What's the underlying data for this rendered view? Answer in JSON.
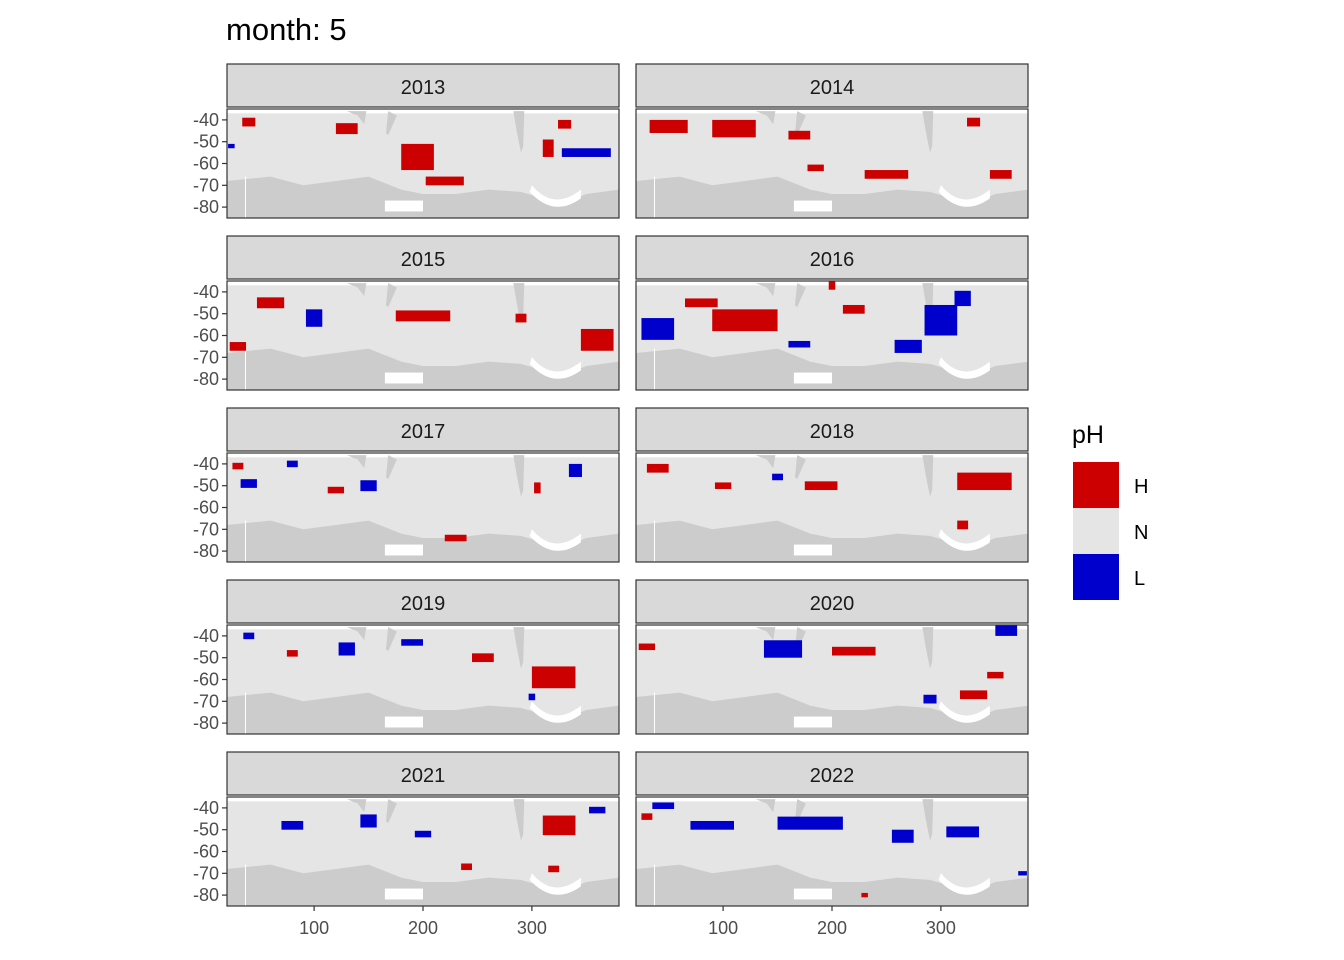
{
  "chart_data": {
    "type": "heatmap",
    "title": "month: 5",
    "facet_labels": [
      "2013",
      "2014",
      "2015",
      "2016",
      "2017",
      "2018",
      "2019",
      "2020",
      "2021",
      "2022"
    ],
    "x_ticks": [
      100,
      200,
      300
    ],
    "y_ticks": [
      -40,
      -50,
      -60,
      -70,
      -80
    ],
    "x_tick_labels": [
      "100",
      "200",
      "300"
    ],
    "y_tick_labels": [
      "-40",
      "-50",
      "-60",
      "-70",
      "-80"
    ],
    "xlim": [
      20,
      380
    ],
    "ylim": [
      -85,
      -35
    ],
    "xlabel": "",
    "ylabel": "",
    "legend": {
      "title": "pH",
      "placement": "right",
      "entries": [
        {
          "label": "H",
          "color": "#cc0000"
        },
        {
          "label": "N",
          "color": "#e5e5e5"
        },
        {
          "label": "L",
          "color": "#0000cc"
        }
      ]
    },
    "land_color": "#cccccc",
    "strip_color": "#d9d9d9",
    "panels": [
      {
        "year": "2013",
        "anomalies": [
          {
            "cls": "H",
            "lon": 195,
            "lat": -57,
            "w": 30,
            "h": 12
          },
          {
            "cls": "H",
            "lon": 220,
            "lat": -68,
            "w": 35,
            "h": 4
          },
          {
            "cls": "H",
            "lon": 130,
            "lat": -44,
            "w": 20,
            "h": 5
          },
          {
            "cls": "H",
            "lon": 40,
            "lat": -41,
            "w": 12,
            "h": 4
          },
          {
            "cls": "H",
            "lon": 315,
            "lat": -53,
            "w": 10,
            "h": 8
          },
          {
            "cls": "H",
            "lon": 330,
            "lat": -42,
            "w": 12,
            "h": 4
          },
          {
            "cls": "L",
            "lon": 350,
            "lat": -55,
            "w": 45,
            "h": 4
          },
          {
            "cls": "L",
            "lon": 24,
            "lat": -52,
            "w": 6,
            "h": 2
          }
        ]
      },
      {
        "year": "2014",
        "anomalies": [
          {
            "cls": "H",
            "lon": 110,
            "lat": -44,
            "w": 40,
            "h": 8
          },
          {
            "cls": "H",
            "lon": 50,
            "lat": -43,
            "w": 35,
            "h": 6
          },
          {
            "cls": "H",
            "lon": 250,
            "lat": -65,
            "w": 40,
            "h": 4
          },
          {
            "cls": "H",
            "lon": 355,
            "lat": -65,
            "w": 20,
            "h": 4
          },
          {
            "cls": "H",
            "lon": 330,
            "lat": -41,
            "w": 12,
            "h": 4
          },
          {
            "cls": "H",
            "lon": 170,
            "lat": -47,
            "w": 20,
            "h": 4
          },
          {
            "cls": "H",
            "lon": 185,
            "lat": -62,
            "w": 15,
            "h": 3
          }
        ]
      },
      {
        "year": "2015",
        "anomalies": [
          {
            "cls": "H",
            "lon": 360,
            "lat": -62,
            "w": 30,
            "h": 10
          },
          {
            "cls": "H",
            "lon": 200,
            "lat": -51,
            "w": 50,
            "h": 5
          },
          {
            "cls": "H",
            "lon": 60,
            "lat": -45,
            "w": 25,
            "h": 5
          },
          {
            "cls": "H",
            "lon": 30,
            "lat": -65,
            "w": 15,
            "h": 4
          },
          {
            "cls": "L",
            "lon": 100,
            "lat": -52,
            "w": 15,
            "h": 8
          },
          {
            "cls": "H",
            "lon": 290,
            "lat": -52,
            "w": 10,
            "h": 4
          }
        ]
      },
      {
        "year": "2016",
        "anomalies": [
          {
            "cls": "H",
            "lon": 120,
            "lat": -53,
            "w": 60,
            "h": 10
          },
          {
            "cls": "H",
            "lon": 220,
            "lat": -48,
            "w": 20,
            "h": 4
          },
          {
            "cls": "H",
            "lon": 80,
            "lat": -45,
            "w": 30,
            "h": 4
          },
          {
            "cls": "H",
            "lon": 200,
            "lat": -37,
            "w": 6,
            "h": 4
          },
          {
            "cls": "L",
            "lon": 40,
            "lat": -57,
            "w": 30,
            "h": 10
          },
          {
            "cls": "L",
            "lon": 270,
            "lat": -65,
            "w": 25,
            "h": 6
          },
          {
            "cls": "L",
            "lon": 300,
            "lat": -53,
            "w": 30,
            "h": 14
          },
          {
            "cls": "L",
            "lon": 320,
            "lat": -43,
            "w": 15,
            "h": 7
          },
          {
            "cls": "L",
            "lon": 170,
            "lat": -64,
            "w": 20,
            "h": 3
          }
        ]
      },
      {
        "year": "2017",
        "anomalies": [
          {
            "cls": "L",
            "lon": 40,
            "lat": -49,
            "w": 15,
            "h": 4
          },
          {
            "cls": "L",
            "lon": 150,
            "lat": -50,
            "w": 15,
            "h": 5
          },
          {
            "cls": "L",
            "lon": 340,
            "lat": -43,
            "w": 12,
            "h": 6
          },
          {
            "cls": "L",
            "lon": 80,
            "lat": -40,
            "w": 10,
            "h": 3
          },
          {
            "cls": "H",
            "lon": 230,
            "lat": -74,
            "w": 20,
            "h": 3
          },
          {
            "cls": "H",
            "lon": 305,
            "lat": -51,
            "w": 6,
            "h": 5
          },
          {
            "cls": "H",
            "lon": 30,
            "lat": -41,
            "w": 10,
            "h": 3
          },
          {
            "cls": "H",
            "lon": 120,
            "lat": -52,
            "w": 15,
            "h": 3
          }
        ]
      },
      {
        "year": "2018",
        "anomalies": [
          {
            "cls": "H",
            "lon": 340,
            "lat": -48,
            "w": 50,
            "h": 8
          },
          {
            "cls": "H",
            "lon": 40,
            "lat": -42,
            "w": 20,
            "h": 4
          },
          {
            "cls": "H",
            "lon": 190,
            "lat": -50,
            "w": 30,
            "h": 4
          },
          {
            "cls": "H",
            "lon": 320,
            "lat": -68,
            "w": 10,
            "h": 4
          },
          {
            "cls": "H",
            "lon": 100,
            "lat": -50,
            "w": 15,
            "h": 3
          },
          {
            "cls": "L",
            "lon": 150,
            "lat": -46,
            "w": 10,
            "h": 3
          }
        ]
      },
      {
        "year": "2019",
        "anomalies": [
          {
            "cls": "H",
            "lon": 320,
            "lat": -59,
            "w": 40,
            "h": 10
          },
          {
            "cls": "H",
            "lon": 255,
            "lat": -50,
            "w": 20,
            "h": 4
          },
          {
            "cls": "L",
            "lon": 130,
            "lat": -46,
            "w": 15,
            "h": 6
          },
          {
            "cls": "L",
            "lon": 190,
            "lat": -43,
            "w": 20,
            "h": 3
          },
          {
            "cls": "L",
            "lon": 40,
            "lat": -40,
            "w": 10,
            "h": 3
          },
          {
            "cls": "L",
            "lon": 300,
            "lat": -68,
            "w": 6,
            "h": 3
          },
          {
            "cls": "H",
            "lon": 80,
            "lat": -48,
            "w": 10,
            "h": 3
          }
        ]
      },
      {
        "year": "2020",
        "anomalies": [
          {
            "cls": "L",
            "lon": 155,
            "lat": -46,
            "w": 35,
            "h": 8
          },
          {
            "cls": "L",
            "lon": 360,
            "lat": -37,
            "w": 20,
            "h": 5
          },
          {
            "cls": "L",
            "lon": 290,
            "lat": -69,
            "w": 12,
            "h": 4
          },
          {
            "cls": "H",
            "lon": 220,
            "lat": -47,
            "w": 40,
            "h": 4
          },
          {
            "cls": "H",
            "lon": 330,
            "lat": -67,
            "w": 25,
            "h": 4
          },
          {
            "cls": "H",
            "lon": 350,
            "lat": -58,
            "w": 15,
            "h": 3
          },
          {
            "cls": "H",
            "lon": 30,
            "lat": -45,
            "w": 15,
            "h": 3
          }
        ]
      },
      {
        "year": "2021",
        "anomalies": [
          {
            "cls": "H",
            "lon": 325,
            "lat": -48,
            "w": 30,
            "h": 9
          },
          {
            "cls": "H",
            "lon": 320,
            "lat": -68,
            "w": 10,
            "h": 3
          },
          {
            "cls": "H",
            "lon": 240,
            "lat": -67,
            "w": 10,
            "h": 3
          },
          {
            "cls": "L",
            "lon": 150,
            "lat": -46,
            "w": 15,
            "h": 6
          },
          {
            "cls": "L",
            "lon": 80,
            "lat": -48,
            "w": 20,
            "h": 4
          },
          {
            "cls": "L",
            "lon": 360,
            "lat": -41,
            "w": 15,
            "h": 3
          },
          {
            "cls": "L",
            "lon": 200,
            "lat": -52,
            "w": 15,
            "h": 3
          }
        ]
      },
      {
        "year": "2022",
        "anomalies": [
          {
            "cls": "L",
            "lon": 180,
            "lat": -47,
            "w": 60,
            "h": 6
          },
          {
            "cls": "L",
            "lon": 265,
            "lat": -53,
            "w": 20,
            "h": 6
          },
          {
            "cls": "L",
            "lon": 90,
            "lat": -48,
            "w": 40,
            "h": 4
          },
          {
            "cls": "L",
            "lon": 320,
            "lat": -51,
            "w": 30,
            "h": 5
          },
          {
            "cls": "L",
            "lon": 45,
            "lat": -39,
            "w": 20,
            "h": 3
          },
          {
            "cls": "L",
            "lon": 375,
            "lat": -70,
            "w": 8,
            "h": 2
          },
          {
            "cls": "H",
            "lon": 30,
            "lat": -44,
            "w": 10,
            "h": 3
          },
          {
            "cls": "H",
            "lon": 230,
            "lat": -80,
            "w": 6,
            "h": 2
          }
        ]
      }
    ]
  }
}
